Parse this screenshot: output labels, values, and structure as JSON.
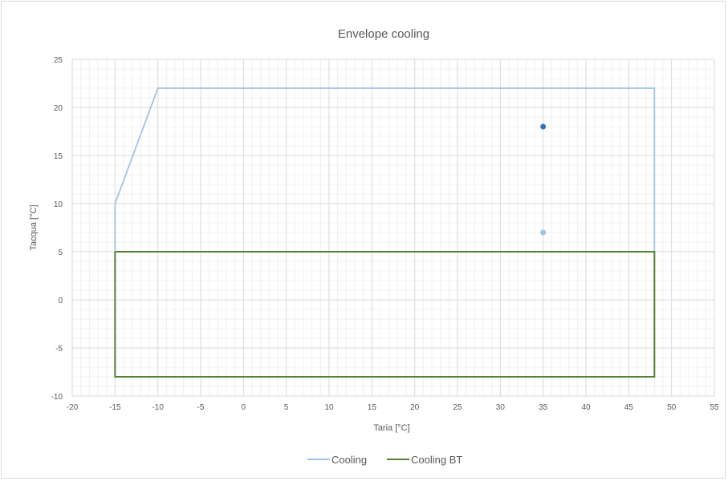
{
  "chart_data": {
    "type": "scatter",
    "title": "Envelope cooling",
    "xlabel": "Taria [°C]",
    "ylabel": "Tacqua [°C]",
    "xlim": [
      -20,
      55
    ],
    "ylim": [
      -10,
      25
    ],
    "x_major_step": 5,
    "y_major_step": 5,
    "minor_grid": true,
    "major_grid": true,
    "legend_position": "bottom",
    "series": [
      {
        "name": "Cooling",
        "color": "#9dc3e6",
        "points": [
          [
            -15,
            5
          ],
          [
            -15,
            10
          ],
          [
            -10,
            22
          ],
          [
            48,
            22
          ],
          [
            48,
            5
          ]
        ]
      },
      {
        "name": "Cooling BT",
        "color": "#548235",
        "points": [
          [
            -15,
            5
          ],
          [
            -15,
            -8
          ],
          [
            48,
            -8
          ],
          [
            48,
            5
          ],
          [
            -15,
            5
          ]
        ]
      }
    ],
    "markers": [
      {
        "x": 35,
        "y": 18,
        "color": "#2e75b6"
      },
      {
        "x": 35,
        "y": 7,
        "color": "#9dc3e6"
      }
    ]
  }
}
